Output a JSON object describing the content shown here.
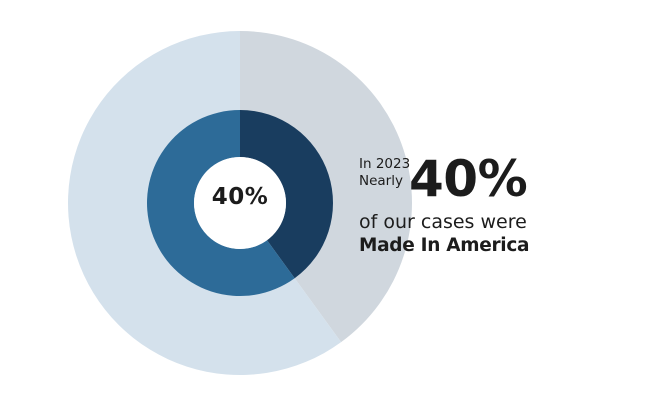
{
  "chart_data": {
    "type": "pie",
    "rings": [
      {
        "name": "",
        "segments": [
          {
            "label": "",
            "value": 40,
            "color": "#d0d7de"
          },
          {
            "label": "",
            "value": 60,
            "color": "#d4e1ec"
          }
        ]
      },
      {
        "name": "",
        "segments": [
          {
            "label": "",
            "value": 40,
            "color": "#193d5f"
          },
          {
            "label": "",
            "value": 60,
            "color": "#2d6b98"
          }
        ]
      }
    ],
    "center_label": "40%"
  },
  "callout": {
    "line1": "In 2023",
    "line2": "Nearly",
    "big_value": "40%",
    "line3": "of our cases were",
    "line4": "Made In America"
  }
}
